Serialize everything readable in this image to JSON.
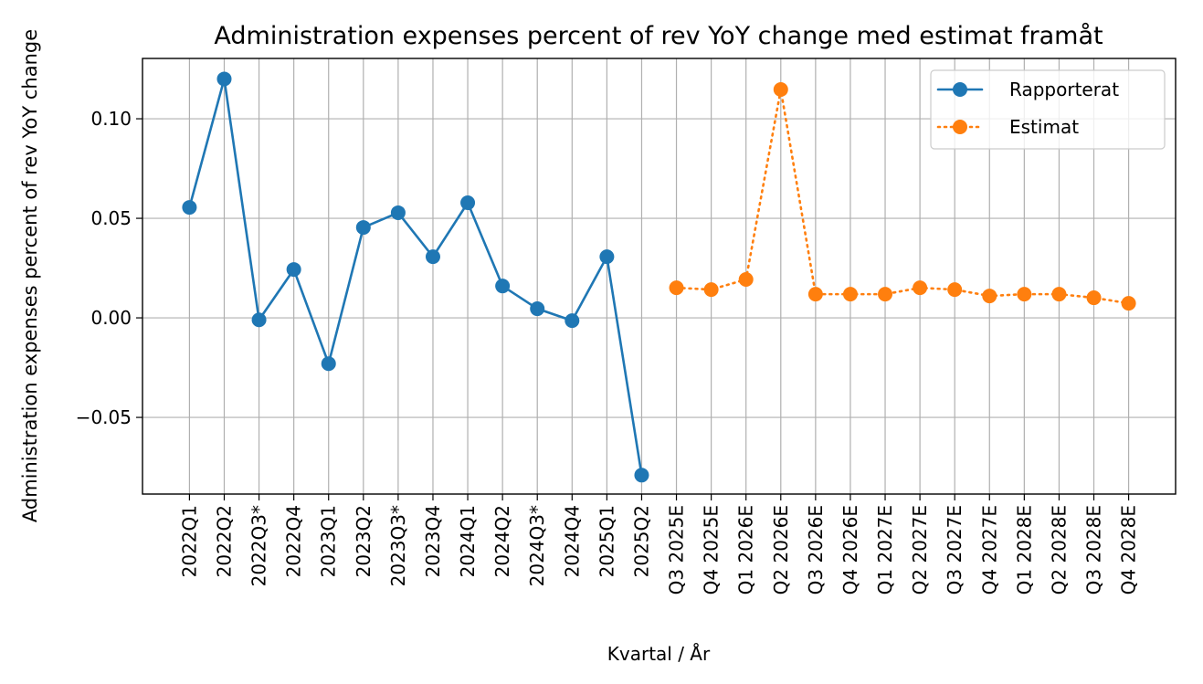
{
  "chart_data": {
    "type": "line",
    "title": "Administration expenses percent of rev YoY change med estimat framåt",
    "xlabel": "Kvartal / År",
    "ylabel": "Administration expenses percent of rev YoY change",
    "categories": [
      "2022Q1",
      "2022Q2",
      "2022Q3*",
      "2022Q4",
      "2023Q1",
      "2023Q2",
      "2023Q3*",
      "2023Q4",
      "2024Q1",
      "2024Q2",
      "2024Q3*",
      "2024Q4",
      "2025Q1",
      "2025Q2",
      "Q3 2025E",
      "Q4 2025E",
      "Q1 2026E",
      "Q2 2026E",
      "Q3 2026E",
      "Q4 2026E",
      "Q1 2027E",
      "Q2 2027E",
      "Q3 2027E",
      "Q4 2027E",
      "Q1 2028E",
      "Q2 2028E",
      "Q3 2028E",
      "Q4 2028E"
    ],
    "series": [
      {
        "name": "Rapporterat",
        "color": "#1f77b4",
        "linestyle": "solid",
        "values": [
          0.0555,
          0.12,
          -0.001,
          0.0243,
          -0.023,
          0.0454,
          0.0528,
          0.0307,
          0.0578,
          0.016,
          0.0046,
          -0.0014,
          0.0307,
          -0.079,
          null,
          null,
          null,
          null,
          null,
          null,
          null,
          null,
          null,
          null,
          null,
          null,
          null,
          null
        ]
      },
      {
        "name": "Estimat",
        "color": "#ff7f0e",
        "linestyle": "dotted",
        "values": [
          null,
          null,
          null,
          null,
          null,
          null,
          null,
          null,
          null,
          null,
          null,
          null,
          null,
          null,
          0.0151,
          0.0142,
          0.0193,
          0.1147,
          0.0119,
          0.0119,
          0.0119,
          0.0151,
          0.0142,
          0.011,
          0.0119,
          0.0119,
          0.0101,
          0.0073
        ]
      }
    ],
    "ylim": [
      -0.0885,
      0.1303
    ],
    "yticks": [
      {
        "value": -0.05,
        "label": "−0.05"
      },
      {
        "value": 0,
        "label": "0.00"
      },
      0.05,
      {
        "value": 0.1,
        "label": "0.10"
      }
    ],
    "grid": true,
    "legend": "upper right"
  }
}
